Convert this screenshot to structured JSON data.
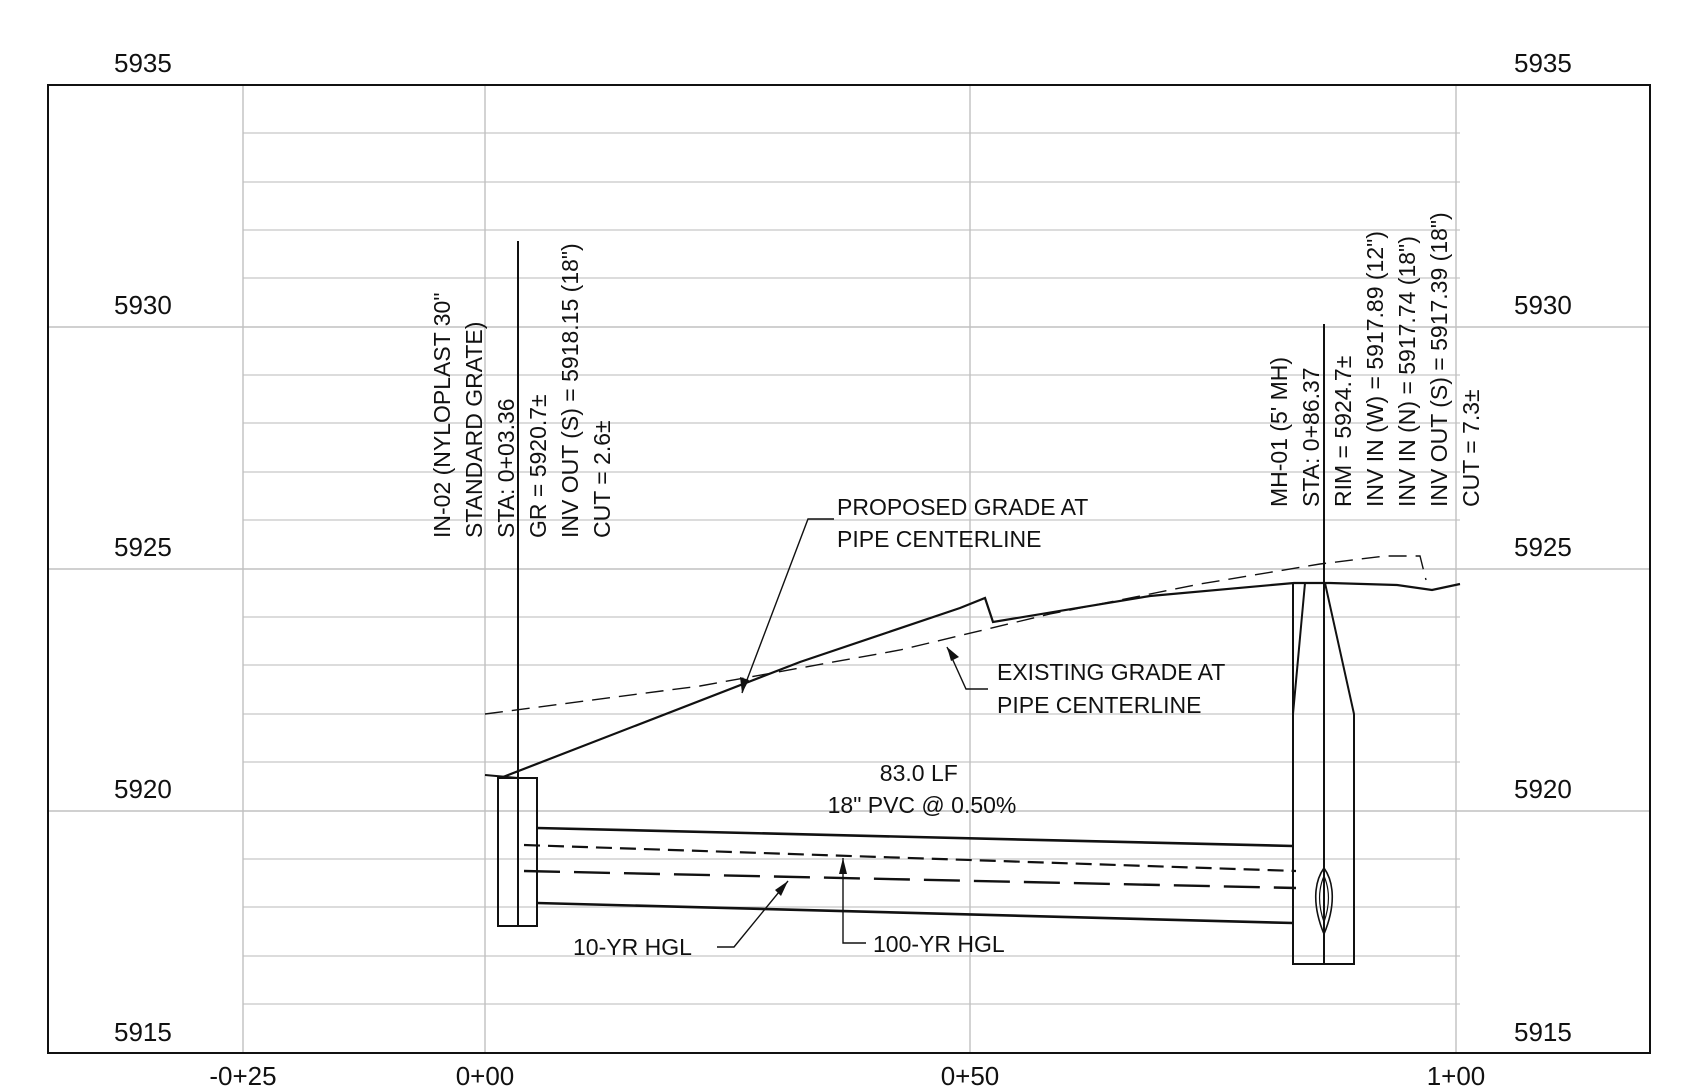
{
  "elevation_labels": [
    "5935",
    "5930",
    "5925",
    "5920",
    "5915"
  ],
  "station_labels": [
    "-0+25",
    "0+00",
    "0+50",
    "1+00"
  ],
  "inlet": {
    "lines": [
      "IN-02 (NYLOPLAST 30\"",
      "STANDARD GRATE)",
      "STA: 0+03.36",
      "GR = 5920.7±",
      "INV OUT (S) = 5918.15 (18\")",
      "CUT = 2.6±"
    ]
  },
  "manhole": {
    "lines": [
      "MH-01 (5' MH)",
      "STA: 0+86.37",
      "RIM = 5924.7±",
      "INV IN (W) = 5917.89 (12\")",
      "INV IN (N) = 5917.74 (18\")",
      "INV OUT (S) = 5917.39 (18\")",
      "CUT = 7.3±"
    ]
  },
  "proposed_grade_label": [
    "PROPOSED GRADE AT",
    "PIPE CENTERLINE"
  ],
  "existing_grade_label": [
    "EXISTING GRADE AT",
    "PIPE CENTERLINE"
  ],
  "pipe_label": [
    "83.0 LF",
    "18\" PVC @ 0.50%"
  ],
  "hgl_10yr_label": "10-YR HGL",
  "hgl_100yr_label": "100-YR HGL"
}
